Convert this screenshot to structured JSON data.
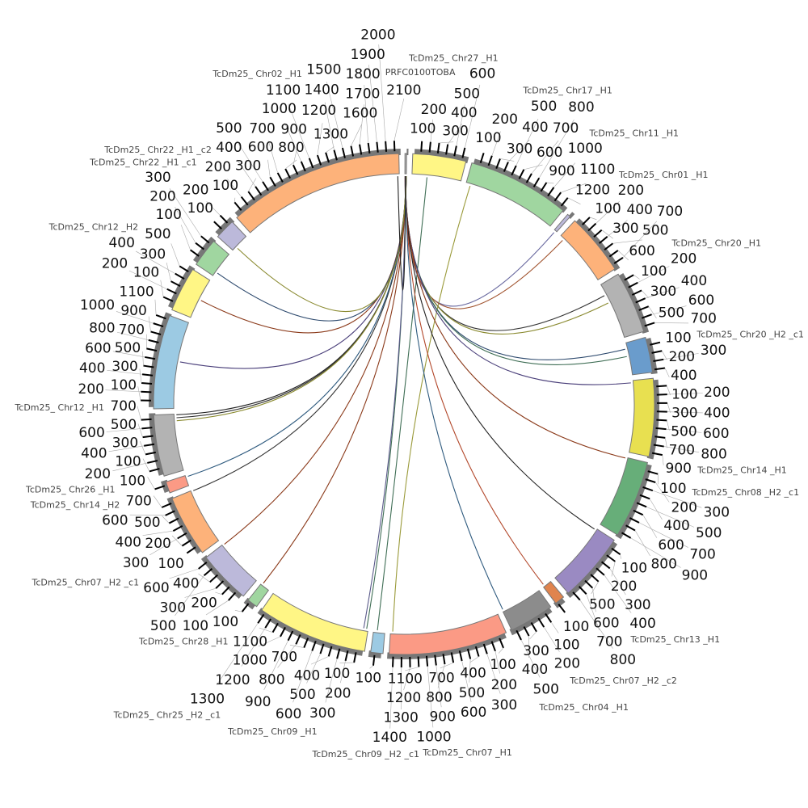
{
  "chart_data": {
    "type": "circos",
    "tick_interval": 100,
    "segments": [
      {
        "name": "TcDm25_ Chr27 _H1",
        "length": 650,
        "color": "#fff685"
      },
      {
        "name": "TcDm25_ Chr17 _H1",
        "length": 1250,
        "color": "#a0d6a0"
      },
      {
        "name": "TcDm25_ Chr11 _H1",
        "length": 40,
        "color": "#bcb9da"
      },
      {
        "name": "TcDm25_ Chr01 _H1",
        "length": 760,
        "color": "#fdb27a"
      },
      {
        "name": "TcDm25_ Chr20 _H1",
        "length": 760,
        "color": "#b3b3b3"
      },
      {
        "name": "TcDm25_ Chr20 _H2 _c1",
        "length": 430,
        "color": "#6a9ccc"
      },
      {
        "name": "TcDm25_ Chr14 _H1",
        "length": 950,
        "color": "#e8e050"
      },
      {
        "name": "TcDm25_ Chr08 _H2 _c1",
        "length": 950,
        "color": "#67ae79"
      },
      {
        "name": "TcDm25_ Chr13 _H1",
        "length": 850,
        "color": "#9a8ac2"
      },
      {
        "name": "TcDm25_ Chr07 _H2 _c2",
        "length": 120,
        "color": "#e0844e"
      },
      {
        "name": "TcDm25_ Chr04 _H1",
        "length": 550,
        "color": "#8c8c8c"
      },
      {
        "name": "TcDm25_ Chr07 _H1",
        "length": 1450,
        "color": "#fb9a85"
      },
      {
        "name": "TcDm25_ Chr09 _H2 _c1",
        "length": 150,
        "color": "#9ccae3"
      },
      {
        "name": "TcDm25_ Chr09 _H1",
        "length": 1350,
        "color": "#fff685"
      },
      {
        "name": "TcDm25_ Chr25 _H2 _c1",
        "length": 130,
        "color": "#a0d6a0"
      },
      {
        "name": "TcDm25_ Chr28 _H1",
        "length": 650,
        "color": "#bcb9da"
      },
      {
        "name": "TcDm25_ Chr07 _H2 _c1",
        "length": 750,
        "color": "#fdb27a"
      },
      {
        "name": "TcDm25_ Chr14 _H2",
        "length": 140,
        "color": "#fb9a85"
      },
      {
        "name": "TcDm25_ Chr26 _H1",
        "length": 750,
        "color": "#b3b3b3"
      },
      {
        "name": "TcDm25_ Chr12 _H1",
        "length": 1150,
        "color": "#9ccae3"
      },
      {
        "name": "TcDm25_ Chr12 _H2",
        "length": 550,
        "color": "#fff685"
      },
      {
        "name": "TcDm25_ Chr22 _H1 _c1",
        "length": 350,
        "color": "#a0d6a0"
      },
      {
        "name": "TcDm25_ Chr22 _H1 _c2",
        "length": 250,
        "color": "#bcb9da"
      },
      {
        "name": "TcDm25_ Chr02 _H1",
        "length": 2150,
        "color": "#fdb27a"
      },
      {
        "name": "PRFC0100TOBA",
        "length": 20,
        "color": "#b3b3b3"
      }
    ],
    "links": [
      {
        "from": [
          0,
          200
        ],
        "to": [
          12,
          100
        ],
        "color": "#3f6e55"
      },
      {
        "from": [
          1,
          60
        ],
        "to": [
          11,
          1420
        ],
        "color": "#9a9a3a"
      },
      {
        "from": [
          24,
          2
        ],
        "to": [
          2,
          20
        ],
        "color": "#6a6aa0"
      },
      {
        "from": [
          24,
          3
        ],
        "to": [
          3,
          60
        ],
        "color": "#a0522d"
      },
      {
        "from": [
          24,
          4
        ],
        "to": [
          4,
          150
        ],
        "color": "#333333"
      },
      {
        "from": [
          24,
          5
        ],
        "to": [
          4,
          260
        ],
        "color": "#8a8a30"
      },
      {
        "from": [
          24,
          6
        ],
        "to": [
          5,
          80
        ],
        "color": "#2e4a6e"
      },
      {
        "from": [
          24,
          7
        ],
        "to": [
          5,
          180
        ],
        "color": "#3f6e55"
      },
      {
        "from": [
          24,
          8
        ],
        "to": [
          6,
          30
        ],
        "color": "#4a3f7a"
      },
      {
        "from": [
          24,
          9
        ],
        "to": [
          7,
          10
        ],
        "color": "#8b3a1a"
      },
      {
        "from": [
          24,
          10
        ],
        "to": [
          8,
          20
        ],
        "color": "#222222"
      },
      {
        "from": [
          24,
          11
        ],
        "to": [
          9,
          100
        ],
        "color": "#b2472a"
      },
      {
        "from": [
          24,
          12
        ],
        "to": [
          10,
          540
        ],
        "color": "#2e5a7e"
      },
      {
        "from": [
          24,
          13
        ],
        "to": [
          13,
          20
        ],
        "color": "#3f6e55"
      },
      {
        "from": [
          24,
          14
        ],
        "to": [
          13,
          60
        ],
        "color": "#5a5a8a"
      },
      {
        "from": [
          24,
          15
        ],
        "to": [
          14,
          110
        ],
        "color": "#8b3a1a"
      },
      {
        "from": [
          24,
          16
        ],
        "to": [
          15,
          640
        ],
        "color": "#8b3a1a"
      },
      {
        "from": [
          24,
          17
        ],
        "to": [
          16,
          740
        ],
        "color": "#333333"
      },
      {
        "from": [
          24,
          18
        ],
        "to": [
          17,
          120
        ],
        "color": "#2e5a7e"
      },
      {
        "from": [
          24,
          18
        ],
        "to": [
          18,
          740
        ],
        "color": "#222222"
      },
      {
        "from": [
          24,
          19
        ],
        "to": [
          18,
          700
        ],
        "color": "#333333"
      },
      {
        "from": [
          24,
          19
        ],
        "to": [
          18,
          660
        ],
        "color": "#8a8a30"
      },
      {
        "from": [
          24,
          15
        ],
        "to": [
          19,
          620
        ],
        "color": "#4a3f7a"
      },
      {
        "from": [
          24,
          14
        ],
        "to": [
          20,
          260
        ],
        "color": "#8b3a1a"
      },
      {
        "from": [
          24,
          13
        ],
        "to": [
          21,
          60
        ],
        "color": "#2e4a6e"
      },
      {
        "from": [
          24,
          12
        ],
        "to": [
          22,
          60
        ],
        "color": "#8a8a30"
      },
      {
        "from": [
          23,
          2130
        ],
        "to": [
          24,
          10
        ],
        "color": "#222222"
      }
    ]
  }
}
